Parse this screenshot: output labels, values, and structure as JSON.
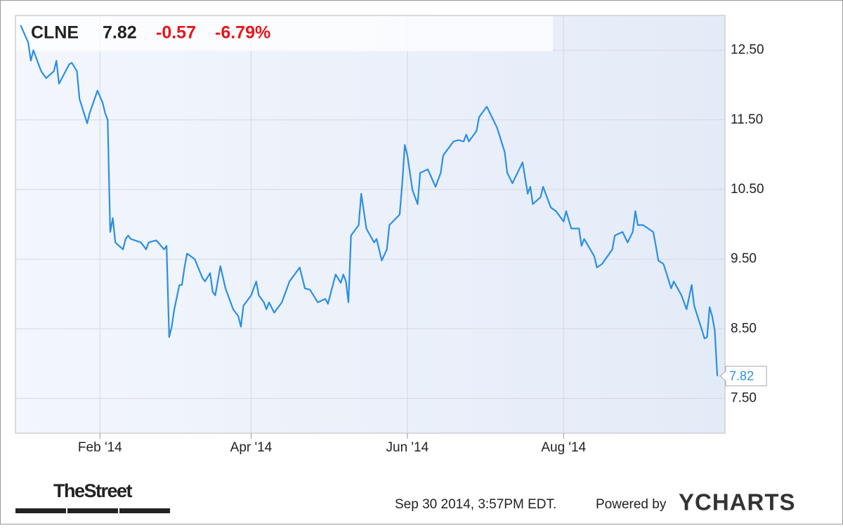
{
  "chart_data": {
    "type": "line",
    "ticker": "CLNE",
    "price": "7.82",
    "change": "-0.57",
    "change_percent": "-6.79%",
    "timestamp": "Sep 30 2014, 3:57PM EDT.",
    "powered_by": "Powered by",
    "brand": "YCHARTS",
    "source": "TheStreet",
    "x": [
      0,
      3,
      4,
      5,
      8,
      10,
      13,
      14,
      15,
      19,
      20,
      22,
      23,
      26,
      27,
      30,
      32,
      33,
      34,
      35,
      36,
      37,
      40,
      41,
      42,
      43,
      47,
      49,
      50,
      53,
      56,
      57,
      58,
      59,
      60,
      62,
      63,
      64,
      65,
      68,
      71,
      72,
      74,
      75,
      76,
      78,
      80,
      83,
      85,
      86,
      87,
      90,
      92,
      93,
      95,
      96,
      97,
      99,
      102,
      105,
      109,
      111,
      113,
      116,
      119,
      120,
      123,
      125,
      126,
      127,
      128,
      129,
      132,
      133,
      134,
      135,
      138,
      139,
      141,
      143,
      144,
      148,
      149,
      150,
      151,
      153,
      155,
      156,
      159,
      162,
      164,
      165,
      169,
      171,
      173,
      174,
      175,
      178,
      179,
      182,
      186,
      189,
      190,
      192,
      196,
      198,
      199,
      200,
      203,
      204,
      207,
      209,
      212,
      213,
      215,
      218,
      219,
      220,
      224,
      225,
      227,
      231,
      232,
      235,
      237,
      239,
      240,
      241,
      243,
      247,
      248,
      249,
      251,
      254,
      255,
      258,
      260,
      262,
      263,
      266,
      267,
      268,
      269,
      270,
      271,
      272
    ],
    "series": [
      {
        "name": "CLNE",
        "color": "#2b8fe3",
        "values": [
          12.86,
          12.61,
          12.35,
          12.5,
          12.2,
          12.1,
          12.2,
          12.35,
          12.02,
          12.3,
          12.32,
          12.2,
          11.8,
          11.45,
          11.6,
          11.92,
          11.75,
          11.6,
          11.5,
          9.89,
          10.09,
          9.74,
          9.64,
          9.79,
          9.84,
          9.79,
          9.74,
          9.64,
          9.74,
          9.77,
          9.64,
          9.69,
          8.38,
          8.53,
          8.78,
          9.13,
          9.13,
          9.38,
          9.58,
          9.5,
          9.23,
          9.18,
          9.3,
          9.03,
          8.98,
          9.4,
          9.08,
          8.78,
          8.68,
          8.53,
          8.83,
          8.98,
          9.18,
          8.98,
          8.88,
          8.78,
          8.88,
          8.73,
          8.88,
          9.18,
          9.38,
          9.08,
          9.06,
          8.88,
          8.93,
          8.86,
          9.28,
          9.16,
          9.28,
          9.18,
          8.88,
          9.84,
          9.99,
          10.44,
          10.19,
          9.94,
          9.74,
          9.79,
          9.48,
          9.64,
          9.99,
          10.14,
          10.59,
          11.14,
          10.99,
          10.49,
          10.29,
          10.74,
          10.79,
          10.54,
          10.74,
          10.99,
          11.19,
          11.21,
          11.19,
          11.29,
          11.19,
          11.34,
          11.54,
          11.69,
          11.39,
          11.04,
          10.74,
          10.59,
          10.89,
          10.44,
          10.54,
          10.29,
          10.39,
          10.54,
          10.24,
          10.19,
          10.04,
          10.19,
          9.94,
          9.94,
          9.69,
          9.79,
          9.54,
          9.38,
          9.43,
          9.64,
          9.84,
          9.89,
          9.74,
          9.89,
          10.19,
          9.99,
          9.99,
          9.89,
          9.69,
          9.48,
          9.43,
          9.08,
          9.18,
          8.98,
          8.78,
          9.13,
          8.83,
          8.48,
          8.36,
          8.38,
          8.81,
          8.68,
          8.48,
          7.82
        ]
      }
    ],
    "xlim": [
      -2,
      275
    ],
    "xticks": [
      {
        "value": 31,
        "label": "Feb '14"
      },
      {
        "value": 90,
        "label": "Apr '14"
      },
      {
        "value": 151,
        "label": "Jun '14"
      },
      {
        "value": 212,
        "label": "Aug '14"
      }
    ],
    "ylim": [
      7,
      13
    ],
    "yticks": [
      {
        "value": 7.5,
        "label": "7.50"
      },
      {
        "value": 8.5,
        "label": "8.50"
      },
      {
        "value": 9.5,
        "label": "9.50"
      },
      {
        "value": 10.5,
        "label": "10.50"
      },
      {
        "value": 11.5,
        "label": "11.50"
      },
      {
        "value": 12.5,
        "label": "12.50"
      }
    ],
    "grid": true
  }
}
